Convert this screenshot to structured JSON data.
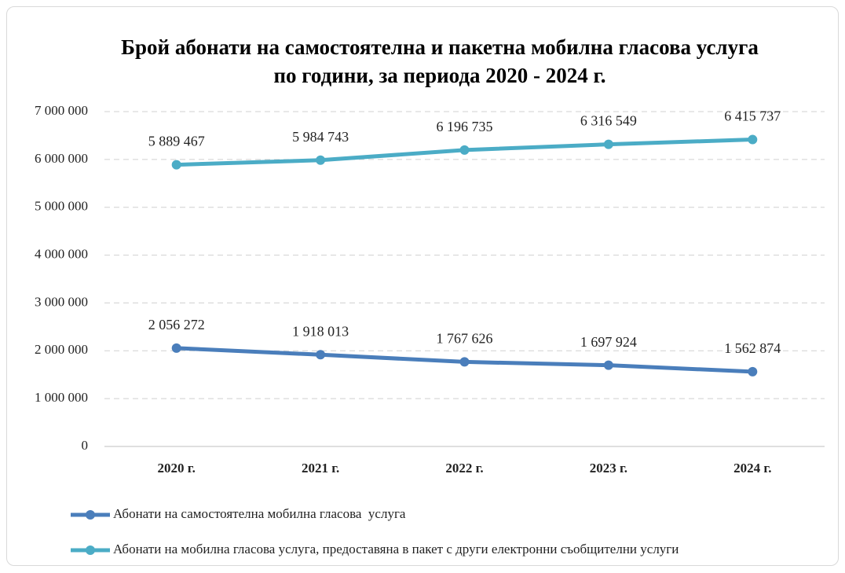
{
  "chart_data": {
    "type": "line",
    "title": "Брой абонати на самостоятелна и пакетна мобилна гласова услуга по години, за периода 2020 - 2024 г.",
    "categories": [
      "2020 г.",
      "2021 г.",
      "2022 г.",
      "2023 г.",
      "2024 г."
    ],
    "series": [
      {
        "name": "Абонати на самостоятелна мобилна гласова  услуга",
        "color": "#4a7ebb",
        "values": [
          2056272,
          1918013,
          1767626,
          1697924,
          1562874
        ],
        "value_labels": [
          "2 056 272",
          "1 918 013",
          "1 767 626",
          "1 697 924",
          "1 562 874"
        ]
      },
      {
        "name": "Абонати на мобилна гласова услуга, предоставяна в пакет с други електронни съобщителни услуги",
        "color": "#4bacc6",
        "values": [
          5889467,
          5984743,
          6196735,
          6316549,
          6415737
        ],
        "value_labels": [
          "5 889 467",
          "5 984 743",
          "6 196 735",
          "6 316 549",
          "6 415 737"
        ]
      }
    ],
    "ylim": [
      0,
      7000000
    ],
    "yticks": [
      0,
      {
        "value": 1000000,
        "label": "1 000 000"
      },
      {
        "value": 2000000,
        "label": "2 000 000"
      },
      {
        "value": 3000000,
        "label": "3 000 000"
      },
      {
        "value": 4000000,
        "label": "4 000 000"
      },
      {
        "value": 5000000,
        "label": "5 000 000"
      },
      {
        "value": 6000000,
        "label": "6 000 000"
      },
      {
        "value": 7000000,
        "label": "7 000 000"
      }
    ],
    "grid": true,
    "legend": "bottom"
  }
}
